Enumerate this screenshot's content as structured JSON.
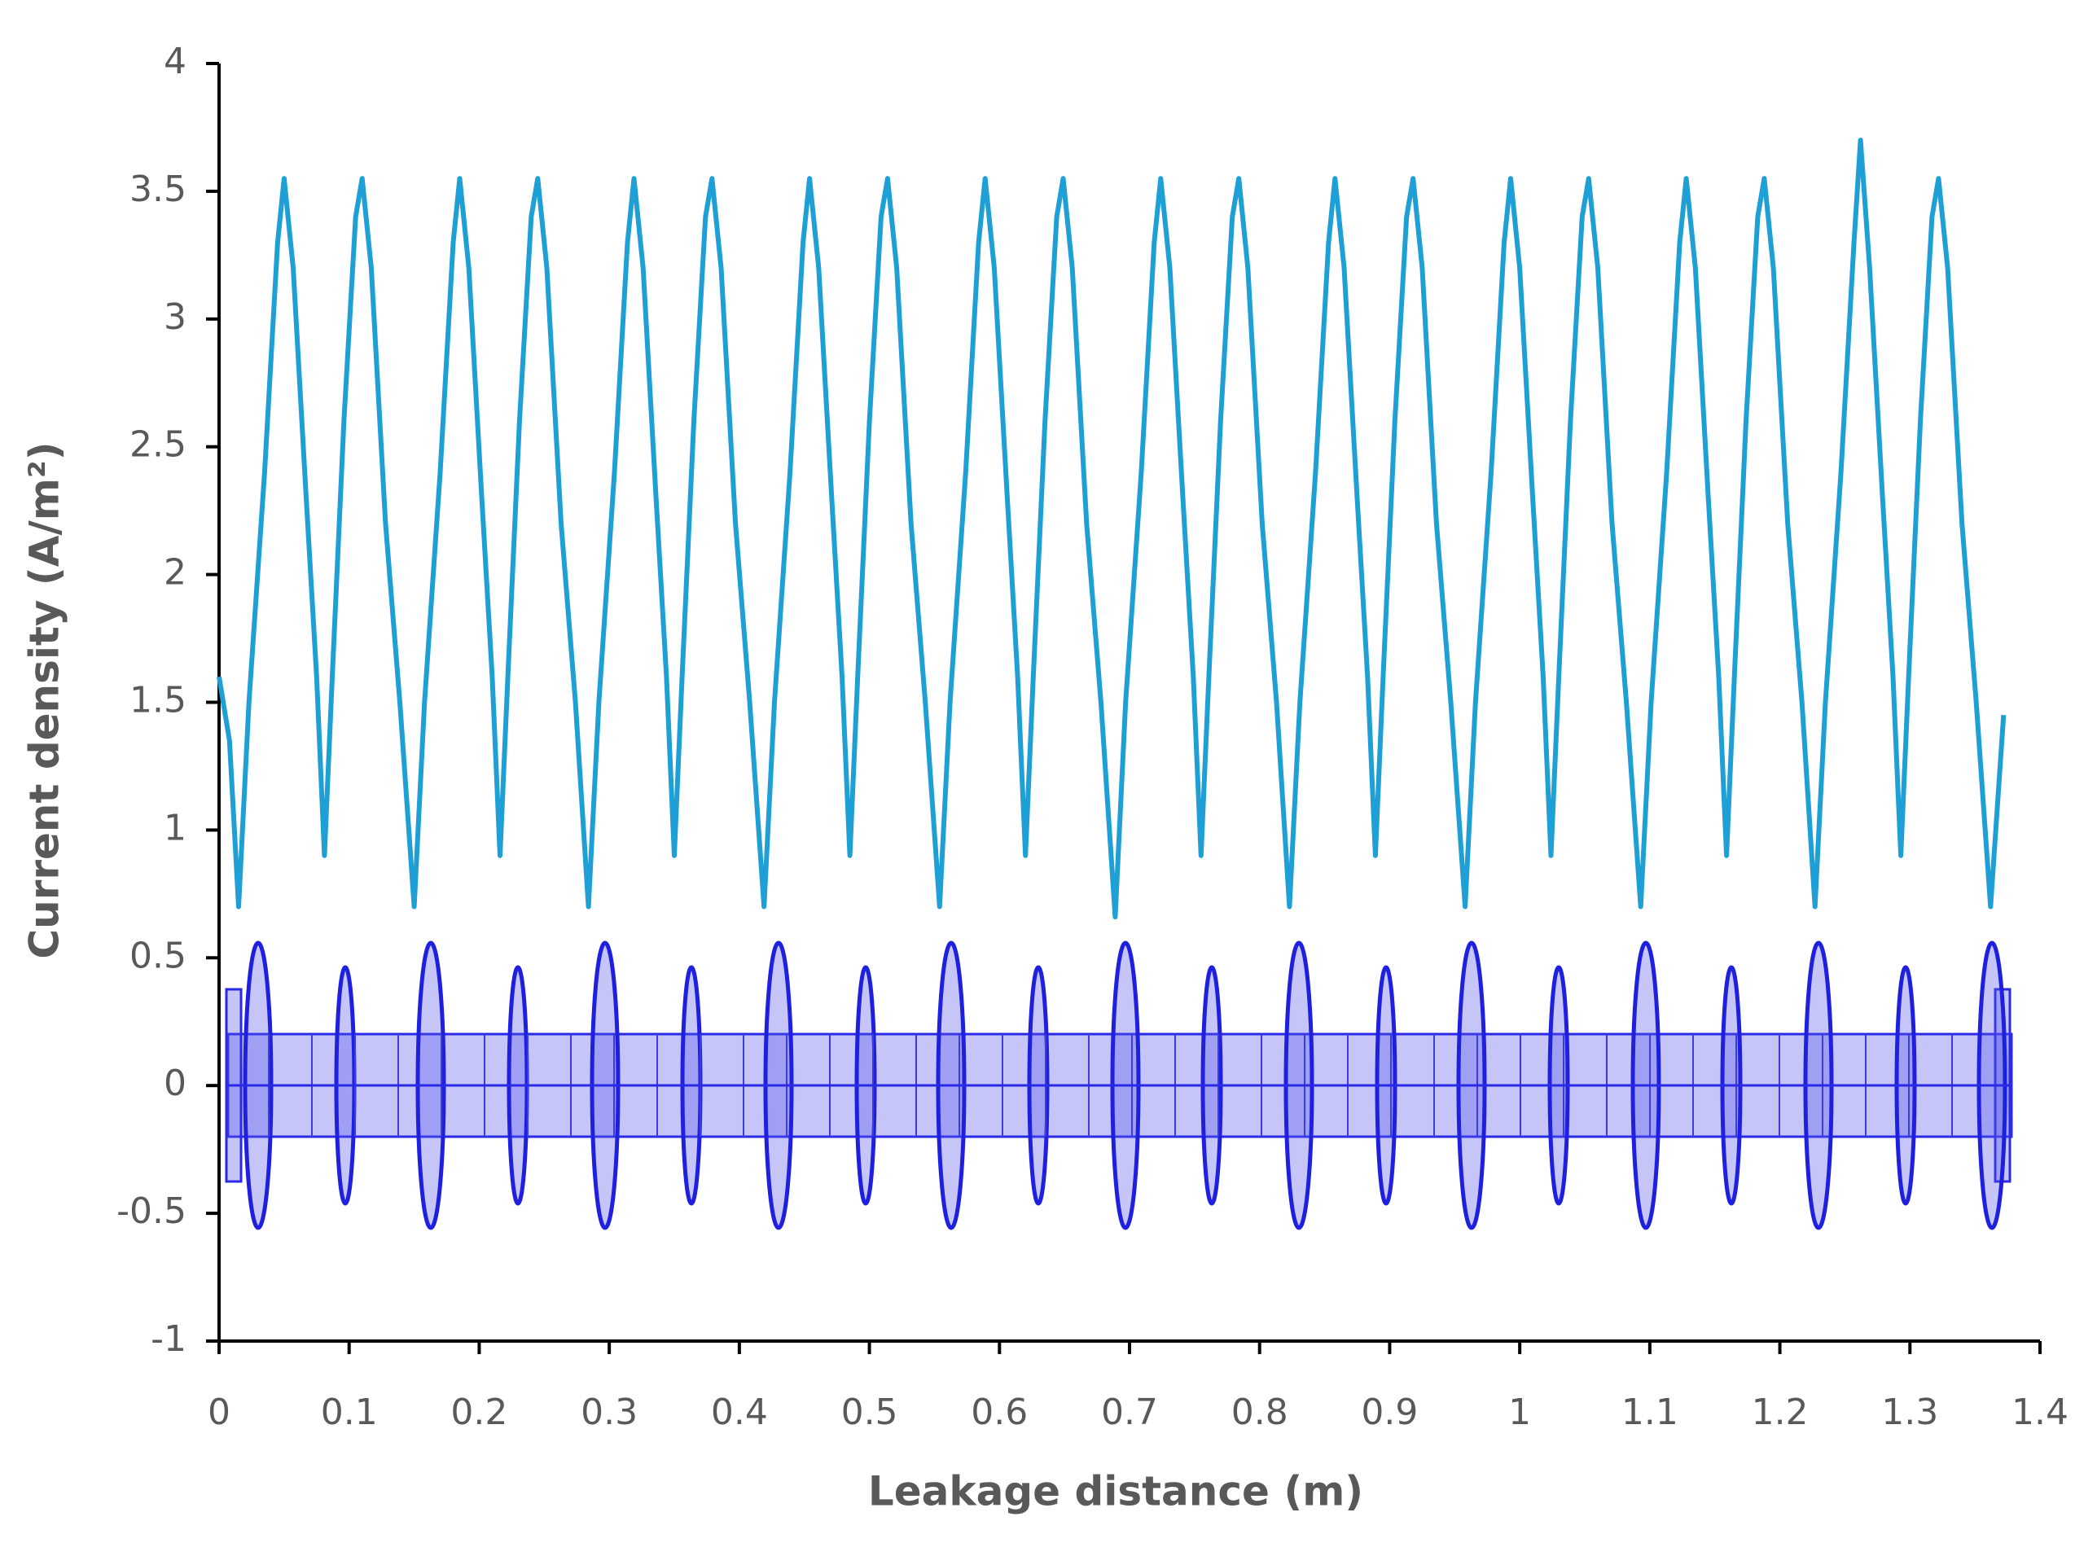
{
  "chart_data": {
    "type": "line",
    "x_label": "Leakage distance (m)",
    "y_label": "Current density (A/m²)",
    "x": [
      0,
      0.008,
      0.015,
      0.023,
      0.035,
      0.045,
      0.05,
      0.057,
      0.067,
      0.075,
      0.081,
      0.087,
      0.096,
      0.105,
      0.11,
      0.117,
      0.128,
      0.139,
      0.15,
      0.158,
      0.17,
      0.18,
      0.185,
      0.192,
      0.202,
      0.21,
      0.216,
      0.222,
      0.231,
      0.24,
      0.245,
      0.252,
      0.263,
      0.274,
      0.284,
      0.292,
      0.304,
      0.314,
      0.319,
      0.326,
      0.336,
      0.344,
      0.35,
      0.356,
      0.365,
      0.374,
      0.379,
      0.386,
      0.397,
      0.408,
      0.419,
      0.427,
      0.439,
      0.449,
      0.454,
      0.461,
      0.471,
      0.479,
      0.485,
      0.491,
      0.5,
      0.509,
      0.514,
      0.521,
      0.532,
      0.543,
      0.554,
      0.562,
      0.574,
      0.584,
      0.589,
      0.596,
      0.606,
      0.614,
      0.62,
      0.626,
      0.635,
      0.644,
      0.649,
      0.656,
      0.667,
      0.678,
      0.689,
      0.697,
      0.709,
      0.719,
      0.724,
      0.731,
      0.741,
      0.749,
      0.755,
      0.761,
      0.77,
      0.779,
      0.784,
      0.791,
      0.802,
      0.813,
      0.823,
      0.831,
      0.843,
      0.853,
      0.858,
      0.865,
      0.875,
      0.883,
      0.889,
      0.895,
      0.904,
      0.913,
      0.918,
      0.925,
      0.936,
      0.947,
      0.958,
      0.966,
      0.978,
      0.988,
      0.993,
      1.0,
      1.01,
      1.018,
      1.024,
      1.03,
      1.039,
      1.048,
      1.053,
      1.06,
      1.071,
      1.082,
      1.093,
      1.101,
      1.113,
      1.123,
      1.128,
      1.135,
      1.145,
      1.153,
      1.159,
      1.165,
      1.174,
      1.183,
      1.188,
      1.195,
      1.206,
      1.217,
      1.227,
      1.235,
      1.247,
      1.257,
      1.262,
      1.269,
      1.279,
      1.287,
      1.293,
      1.299,
      1.308,
      1.317,
      1.322,
      1.329,
      1.34,
      1.351,
      1.362,
      1.372
    ],
    "series": [
      {
        "color": "#1ea0d6",
        "values": [
          1.6,
          1.35,
          0.7,
          1.5,
          2.4,
          3.3,
          3.55,
          3.2,
          2.3,
          1.6,
          0.9,
          1.6,
          2.6,
          3.4,
          3.55,
          3.2,
          2.2,
          1.5,
          0.7,
          1.5,
          2.4,
          3.3,
          3.55,
          3.2,
          2.3,
          1.6,
          0.9,
          1.6,
          2.6,
          3.4,
          3.55,
          3.2,
          2.2,
          1.5,
          0.7,
          1.5,
          2.4,
          3.3,
          3.55,
          3.2,
          2.3,
          1.6,
          0.9,
          1.6,
          2.6,
          3.4,
          3.55,
          3.2,
          2.2,
          1.5,
          0.7,
          1.5,
          2.4,
          3.3,
          3.55,
          3.2,
          2.3,
          1.6,
          0.9,
          1.6,
          2.6,
          3.4,
          3.55,
          3.2,
          2.2,
          1.5,
          0.7,
          1.5,
          2.4,
          3.3,
          3.55,
          3.2,
          2.3,
          1.6,
          0.9,
          1.6,
          2.6,
          3.4,
          3.55,
          3.2,
          2.2,
          1.5,
          0.66,
          1.5,
          2.4,
          3.3,
          3.55,
          3.2,
          2.3,
          1.6,
          0.9,
          1.6,
          2.6,
          3.4,
          3.55,
          3.2,
          2.2,
          1.5,
          0.7,
          1.5,
          2.4,
          3.3,
          3.55,
          3.2,
          2.3,
          1.6,
          0.9,
          1.6,
          2.6,
          3.4,
          3.55,
          3.2,
          2.2,
          1.5,
          0.7,
          1.5,
          2.4,
          3.3,
          3.55,
          3.2,
          2.3,
          1.6,
          0.9,
          1.6,
          2.6,
          3.4,
          3.55,
          3.2,
          2.2,
          1.5,
          0.7,
          1.5,
          2.4,
          3.3,
          3.55,
          3.2,
          2.3,
          1.6,
          0.9,
          1.6,
          2.6,
          3.4,
          3.55,
          3.2,
          2.2,
          1.5,
          0.7,
          1.5,
          2.4,
          3.3,
          3.7,
          3.2,
          2.3,
          1.6,
          0.9,
          1.6,
          2.6,
          3.4,
          3.55,
          3.2,
          2.2,
          1.5,
          0.7,
          1.45
        ]
      }
    ],
    "xlim": [
      0,
      1.4
    ],
    "ylim": [
      -1,
      4
    ],
    "xticks": [
      0,
      0.1,
      0.2,
      0.3,
      0.4,
      0.5,
      0.6,
      0.7,
      0.8,
      0.9,
      1,
      1.1,
      1.2,
      1.3,
      1.4
    ],
    "yticks": [
      -1,
      -0.5,
      0,
      0.5,
      1,
      1.5,
      2,
      2.5,
      3,
      3.5,
      4
    ],
    "grid": false
  }
}
